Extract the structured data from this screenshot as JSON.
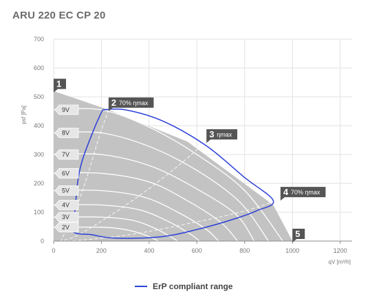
{
  "title": "ARU 220 EC CP 20",
  "chart_data": {
    "type": "line",
    "xlabel": "qV [m³/h]",
    "ylabel": "psf [Pa]",
    "xlim": [
      0,
      1250
    ],
    "ylim": [
      0,
      700
    ],
    "x_ticks": [
      0,
      200,
      400,
      600,
      800,
      1000,
      1200
    ],
    "y_ticks": [
      0,
      100,
      200,
      300,
      400,
      500,
      600,
      700
    ],
    "grid": true,
    "working_area": [
      [
        0,
        520
      ],
      [
        230,
        455
      ],
      [
        560,
        345
      ],
      [
        920,
        125
      ],
      [
        1000,
        0
      ],
      [
        0,
        0
      ]
    ],
    "voltage_curves": [
      {
        "name": "9V",
        "points": [
          [
            0,
            455
          ],
          [
            200,
            455
          ],
          [
            400,
            395
          ],
          [
            600,
            300
          ],
          [
            800,
            175
          ],
          [
            960,
            0
          ]
        ]
      },
      {
        "name": "8V",
        "points": [
          [
            0,
            375
          ],
          [
            200,
            375
          ],
          [
            400,
            328
          ],
          [
            600,
            245
          ],
          [
            780,
            135
          ],
          [
            900,
            0
          ]
        ]
      },
      {
        "name": "7V",
        "points": [
          [
            0,
            300
          ],
          [
            200,
            300
          ],
          [
            400,
            262
          ],
          [
            580,
            190
          ],
          [
            760,
            95
          ],
          [
            840,
            0
          ]
        ]
      },
      {
        "name": "6V",
        "points": [
          [
            0,
            235
          ],
          [
            200,
            235
          ],
          [
            400,
            205
          ],
          [
            560,
            140
          ],
          [
            700,
            65
          ],
          [
            770,
            0
          ]
        ]
      },
      {
        "name": "5V",
        "points": [
          [
            0,
            175
          ],
          [
            200,
            175
          ],
          [
            380,
            152
          ],
          [
            520,
            100
          ],
          [
            640,
            40
          ],
          [
            690,
            0
          ]
        ]
      },
      {
        "name": "4V",
        "points": [
          [
            0,
            125
          ],
          [
            200,
            125
          ],
          [
            360,
            108
          ],
          [
            480,
            68
          ],
          [
            580,
            20
          ],
          [
            610,
            0
          ]
        ]
      },
      {
        "name": "3V",
        "points": [
          [
            0,
            83
          ],
          [
            200,
            83
          ],
          [
            330,
            72
          ],
          [
            430,
            42
          ],
          [
            510,
            5
          ],
          [
            520,
            0
          ]
        ]
      },
      {
        "name": "2V",
        "points": [
          [
            0,
            48
          ],
          [
            200,
            48
          ],
          [
            300,
            40
          ],
          [
            380,
            22
          ],
          [
            440,
            0
          ]
        ]
      }
    ],
    "efficiency_lines": [
      {
        "name": "70% ηmax",
        "points": [
          [
            230,
            455
          ],
          [
            190,
            360
          ],
          [
            150,
            250
          ],
          [
            110,
            150
          ],
          [
            70,
            70
          ],
          [
            30,
            0
          ]
        ]
      },
      {
        "name": "ηmax",
        "points": [
          [
            640,
            345
          ],
          [
            520,
            260
          ],
          [
            380,
            170
          ],
          [
            240,
            90
          ],
          [
            100,
            20
          ],
          [
            30,
            0
          ]
        ]
      },
      {
        "name": "70% ηmax",
        "points": [
          [
            950,
            145
          ],
          [
            780,
            100
          ],
          [
            560,
            60
          ],
          [
            340,
            25
          ],
          [
            140,
            5
          ],
          [
            50,
            0
          ]
        ]
      }
    ],
    "erp_range": [
      [
        205,
        455
      ],
      [
        170,
        390
      ],
      [
        120,
        280
      ],
      [
        100,
        200
      ],
      [
        90,
        110
      ],
      [
        80,
        35
      ],
      [
        160,
        22
      ],
      [
        260,
        10
      ],
      [
        450,
        15
      ],
      [
        600,
        40
      ],
      [
        750,
        75
      ],
      [
        850,
        105
      ],
      [
        920,
        140
      ],
      [
        800,
        220
      ],
      [
        640,
        330
      ],
      [
        460,
        415
      ],
      [
        300,
        455
      ],
      [
        205,
        455
      ]
    ],
    "markers": [
      {
        "num": "1",
        "text": "",
        "x": 0,
        "y": 520
      },
      {
        "num": "2",
        "text": "70% ηmax",
        "x": 230,
        "y": 455
      },
      {
        "num": "3",
        "text": "ηmax",
        "x": 640,
        "y": 345
      },
      {
        "num": "4",
        "text": "70% ηmax",
        "x": 950,
        "y": 145
      },
      {
        "num": "5",
        "text": "",
        "x": 1000,
        "y": 0
      }
    ],
    "legend": [
      {
        "name": "ErP compliant range",
        "color": "#2a3fd8"
      }
    ],
    "legend_position": "bottom"
  }
}
